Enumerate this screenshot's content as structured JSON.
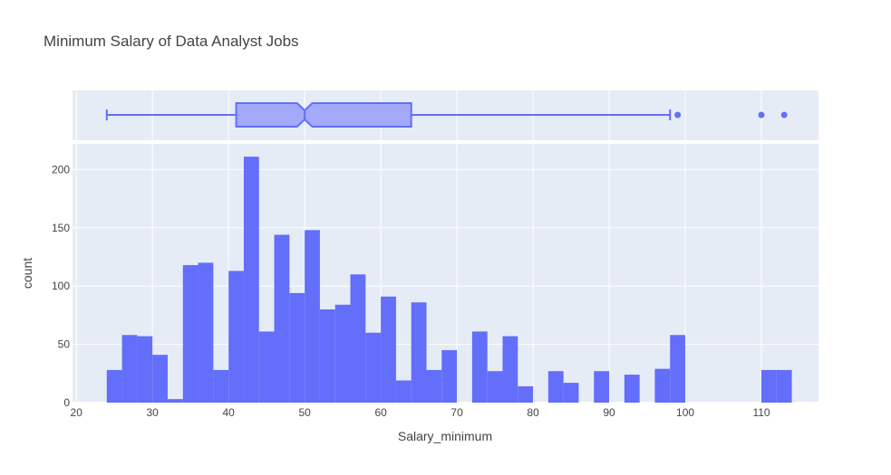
{
  "chart_data": {
    "type": "histogram",
    "title": "Minimum Salary of Data Analyst Jobs",
    "xlabel": "Salary_minimum",
    "ylabel": "count",
    "xlim": [
      19.5,
      117.5
    ],
    "ylim": [
      0,
      222
    ],
    "x_ticks": [
      20,
      30,
      40,
      50,
      60,
      70,
      80,
      90,
      100,
      110
    ],
    "y_ticks": [
      0,
      50,
      100,
      150,
      200
    ],
    "bin_width": 2,
    "bins": [
      {
        "x0": 24,
        "count": 28
      },
      {
        "x0": 26,
        "count": 58
      },
      {
        "x0": 28,
        "count": 57
      },
      {
        "x0": 30,
        "count": 41
      },
      {
        "x0": 32,
        "count": 3
      },
      {
        "x0": 34,
        "count": 118
      },
      {
        "x0": 36,
        "count": 120
      },
      {
        "x0": 38,
        "count": 28
      },
      {
        "x0": 40,
        "count": 113
      },
      {
        "x0": 42,
        "count": 211
      },
      {
        "x0": 44,
        "count": 61
      },
      {
        "x0": 46,
        "count": 144
      },
      {
        "x0": 48,
        "count": 94
      },
      {
        "x0": 50,
        "count": 148
      },
      {
        "x0": 52,
        "count": 80
      },
      {
        "x0": 54,
        "count": 84
      },
      {
        "x0": 56,
        "count": 110
      },
      {
        "x0": 58,
        "count": 60
      },
      {
        "x0": 60,
        "count": 91
      },
      {
        "x0": 62,
        "count": 19
      },
      {
        "x0": 64,
        "count": 86
      },
      {
        "x0": 66,
        "count": 28
      },
      {
        "x0": 68,
        "count": 45
      },
      {
        "x0": 72,
        "count": 61
      },
      {
        "x0": 74,
        "count": 27
      },
      {
        "x0": 76,
        "count": 57
      },
      {
        "x0": 78,
        "count": 14
      },
      {
        "x0": 82,
        "count": 27
      },
      {
        "x0": 84,
        "count": 17
      },
      {
        "x0": 88,
        "count": 27
      },
      {
        "x0": 92,
        "count": 24
      },
      {
        "x0": 96,
        "count": 29
      },
      {
        "x0": 98,
        "count": 58
      },
      {
        "x0": 110,
        "count": 28
      },
      {
        "x0": 112,
        "count": 28
      }
    ],
    "box": {
      "lower_fence": 24,
      "q1": 41,
      "median": 50,
      "q3": 64,
      "upper_fence": 98,
      "notch_low": 49,
      "notch_high": 51,
      "outliers": [
        99,
        110,
        113
      ]
    },
    "grid": true,
    "colors": {
      "bar": "#636efa",
      "box_fill": "#a3aafc",
      "box_line": "#636efa",
      "plot_bg": "#e5ecf6",
      "grid": "#ffffff"
    }
  }
}
